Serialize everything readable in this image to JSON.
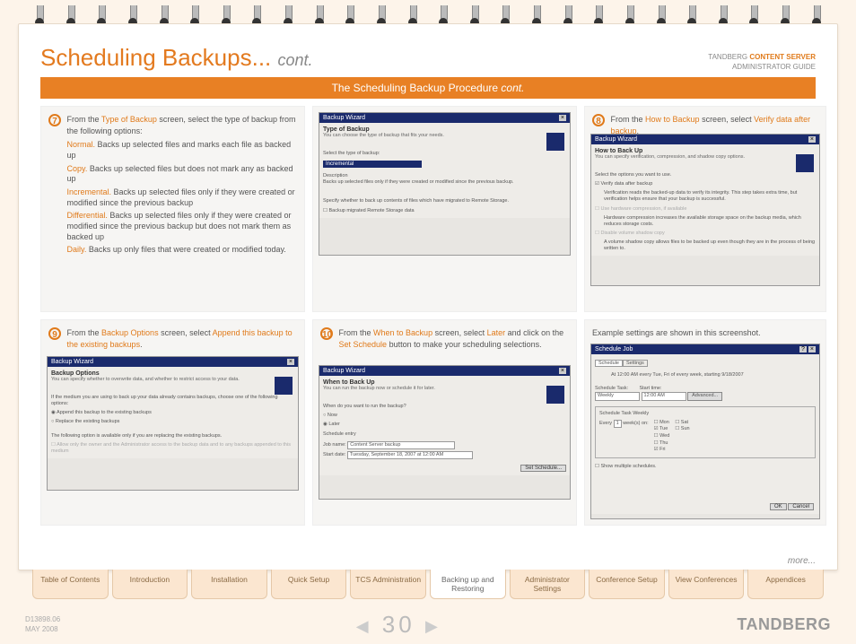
{
  "header": {
    "title_main": "Scheduling Backups...",
    "title_cont": "cont.",
    "doc_line1_a": "TANDBERG ",
    "doc_line1_b": "CONTENT SERVER",
    "doc_line2": "ADMINISTRATOR GUIDE"
  },
  "bar": {
    "text": "The Scheduling Backup Procedure ",
    "cont": "cont."
  },
  "step7": {
    "num": "7",
    "intro_a": "From the ",
    "intro_b": "Type of Backup",
    "intro_c": " screen, select the type of backup from the following options:",
    "opts": [
      {
        "k": "Normal.",
        "v": " Backs up selected files and marks each file as backed up"
      },
      {
        "k": "Copy.",
        "v": " Backs up selected files but does not mark any as backed up"
      },
      {
        "k": "Incremental.",
        "v": " Backs up selected files only if they were created or modified since the previous backup"
      },
      {
        "k": "Differential.",
        "v": " Backs up selected files only if they were created or modified since the previous backup but does not mark them as backed up"
      },
      {
        "k": "Daily.",
        "v": " Backs up only files that were created or modified today."
      }
    ],
    "sb": {
      "title": "Backup Wizard",
      "h": "Type of Backup",
      "sub": "You can choose the type of backup that fits your needs.",
      "label": "Select the type of backup:",
      "sel": "Incremental",
      "desc_h": "Description",
      "desc": "Backs up selected files only if they were created or modified since the previous backup.",
      "note": "Specify whether to back up contents of files which have migrated to Remote Storage.",
      "chk": "Backup migrated Remote Storage data"
    }
  },
  "step8": {
    "num": "8",
    "a": "From the ",
    "b": "How to Backup",
    "c": " screen, select ",
    "d": "Verify data after backup",
    "e": ".",
    "sb": {
      "title": "Backup Wizard",
      "h": "How to Back Up",
      "sub": "You can specify verification, compression, and shadow copy options.",
      "label": "Select the options you want to use.",
      "o1": "Verify data after backup",
      "o1d": "Verification reads the backed-up data to verify its integrity. This step takes extra time, but verification helps ensure that your backup is successful.",
      "o2": "Use hardware compression, if available",
      "o2d": "Hardware compression increases the available storage space on the backup media, which reduces storage costs.",
      "o3": "Disable volume shadow copy",
      "o3d": "A volume shadow copy allows files to be backed up even though they are in the process of being written to."
    }
  },
  "step9": {
    "num": "9",
    "a": "From the ",
    "b": "Backup Options",
    "c": " screen, select ",
    "d": "Append this backup to the existing backups",
    "e": ".",
    "sb": {
      "title": "Backup Wizard",
      "h": "Backup Options",
      "sub": "You can specify whether to overwrite data, and whether to restrict access to your data.",
      "lead": "If the medium you are using to back up your data already contains backups, choose one of the following options:",
      "r1": "Append this backup to the existing backups",
      "r2": "Replace the existing backups",
      "note": "The following option is available only if you are replacing the existing backups.",
      "chk": "Allow only the owner and the Administrator access to the backup data and to any backups appended to this medium"
    }
  },
  "step10": {
    "num": "10",
    "a": "From the ",
    "b": "When to Backup",
    "c": " screen, select ",
    "d": "Later",
    "e": " and click on the ",
    "f": "Set Schedule",
    "g": " button to make your scheduling selections.",
    "sb": {
      "title": "Backup Wizard",
      "h": "When to Back Up",
      "sub": "You can run the backup now or schedule it for later.",
      "q": "When do you want to run the backup?",
      "r1": "Now",
      "r2": "Later",
      "se": "Schedule entry",
      "jn_l": "Job name:",
      "jn_v": "Content Server backup",
      "sd_l": "Start date:",
      "sd_v": "Tuesday, September 18, 2007 at 12:00 AM",
      "btn": "Set Schedule..."
    }
  },
  "step11": {
    "text": "Example settings are shown in this screenshot.",
    "sb": {
      "title": "Schedule Job",
      "tab1": "Schedule",
      "tab2": "Settings",
      "summary": "At 12:00 AM every Tue, Fri of every week, starting 9/18/2007",
      "st_l": "Schedule Task:",
      "st_v": "Weekly",
      "tm_l": "Start time:",
      "tm_v": "12:00 AM",
      "adv": "Advanced...",
      "box": "Schedule Task Weekly",
      "ev": "Every",
      "wk": "1",
      "wks": "week(s) on:",
      "d": [
        "Mon",
        "Tue",
        "Wed",
        "Thu",
        "Fri"
      ],
      "sat": "Sat",
      "sun": "Sun",
      "show": "Show multiple schedules.",
      "ok": "OK",
      "cancel": "Cancel"
    }
  },
  "more": "more...",
  "tabs": [
    "Table of Contents",
    "Introduction",
    "Installation",
    "Quick Setup",
    "TCS Administration",
    "Backing up and Restoring",
    "Administrator Settings",
    "Conference Setup",
    "View Conferences",
    "Appendices"
  ],
  "active_tab": 5,
  "footer": {
    "doc": "D13898.06",
    "date": "MAY 2008",
    "page": "30",
    "brand": "TANDBERG"
  }
}
